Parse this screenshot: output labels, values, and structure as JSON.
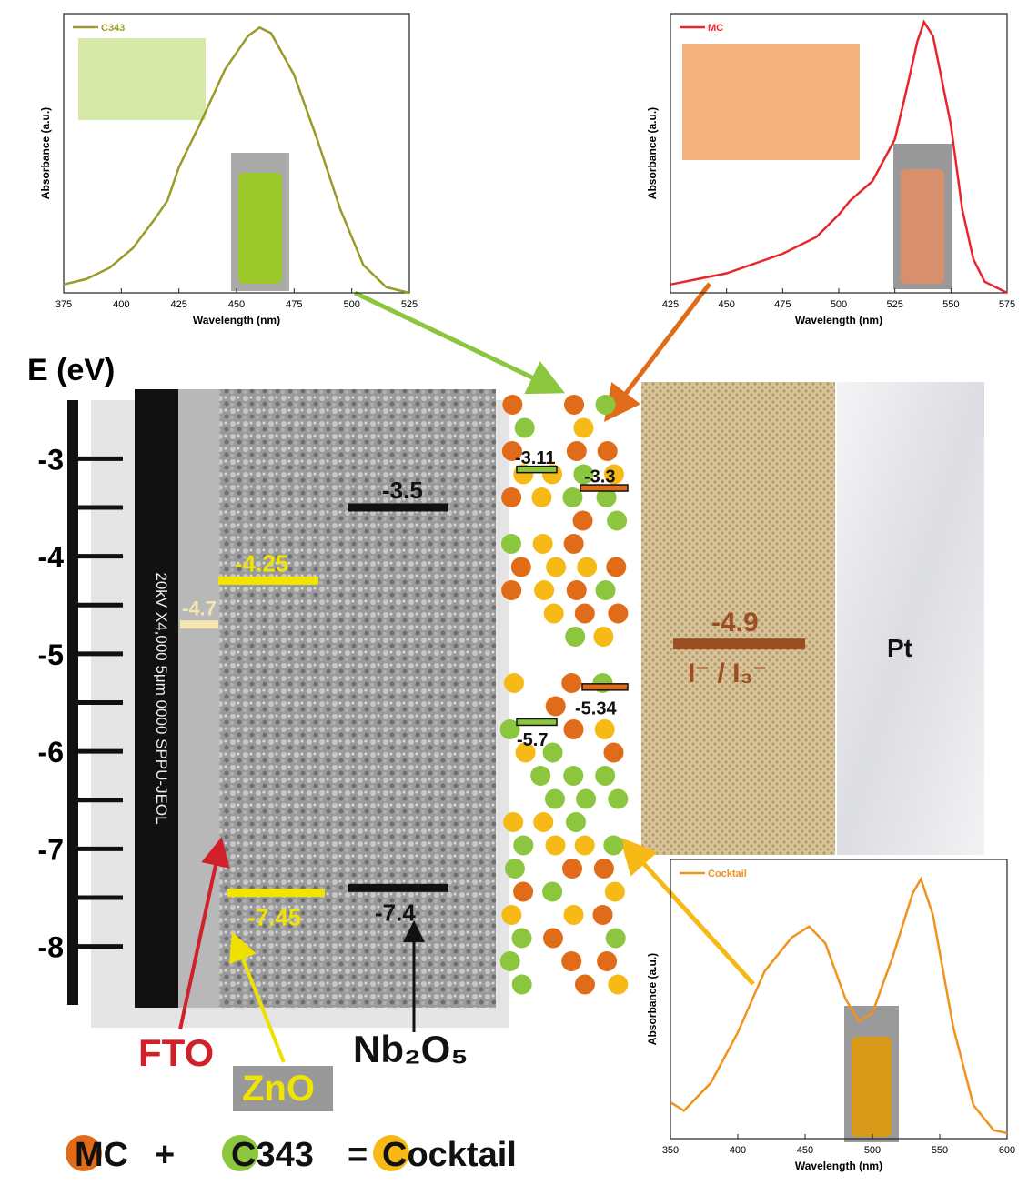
{
  "chart_data": [
    {
      "type": "line",
      "xlabel": "Wavelength (nm)",
      "ylabel": "Absorbance (a.u.)",
      "x": [
        375,
        385,
        395,
        405,
        415,
        420,
        425,
        435,
        445,
        455,
        460,
        465,
        475,
        485,
        495,
        505,
        515,
        525
      ],
      "series": [
        {
          "name": "C343",
          "color": "#9a9a2a",
          "values": [
            0.03,
            0.05,
            0.09,
            0.16,
            0.27,
            0.33,
            0.45,
            0.62,
            0.8,
            0.92,
            0.95,
            0.93,
            0.78,
            0.55,
            0.3,
            0.1,
            0.02,
            0.0
          ]
        }
      ],
      "xlim": [
        375,
        525
      ],
      "xticks": [
        375,
        400,
        425,
        450,
        475,
        500,
        525
      ],
      "ylim": [
        0,
        1
      ]
    },
    {
      "type": "line",
      "xlabel": "Wavelength (nm)",
      "ylabel": "Absorbance (a.u.)",
      "x": [
        425,
        450,
        475,
        490,
        500,
        505,
        515,
        525,
        530,
        535,
        538,
        542,
        550,
        555,
        560,
        565,
        575
      ],
      "series": [
        {
          "name": "MC",
          "color": "#e8262a",
          "values": [
            0.03,
            0.07,
            0.14,
            0.2,
            0.28,
            0.33,
            0.4,
            0.55,
            0.72,
            0.9,
            0.97,
            0.92,
            0.6,
            0.3,
            0.12,
            0.04,
            0.0
          ]
        }
      ],
      "xlim": [
        425,
        575
      ],
      "xticks": [
        425,
        450,
        475,
        500,
        525,
        550,
        575
      ],
      "ylim": [
        0,
        1
      ]
    },
    {
      "type": "line",
      "xlabel": "Wavelength (nm)",
      "ylabel": "Absorbance (a.u.)",
      "x": [
        350,
        360,
        380,
        400,
        420,
        440,
        453,
        465,
        480,
        490,
        500,
        515,
        530,
        536,
        545,
        560,
        575,
        590,
        600
      ],
      "series": [
        {
          "name": "Cocktail",
          "color": "#f0931e",
          "values": [
            0.13,
            0.1,
            0.2,
            0.38,
            0.6,
            0.72,
            0.76,
            0.7,
            0.5,
            0.42,
            0.45,
            0.65,
            0.88,
            0.93,
            0.8,
            0.4,
            0.12,
            0.03,
            0.02
          ]
        }
      ],
      "xlim": [
        350,
        600
      ],
      "xticks": [
        350,
        400,
        450,
        500,
        550,
        600
      ],
      "ylim": [
        0,
        1
      ]
    }
  ],
  "energy_diagram": {
    "ylabel": "E (eV)",
    "ylim": [
      -8.6,
      -2.4
    ],
    "yticks": [
      -3,
      -4,
      -5,
      -6,
      -7,
      -8
    ],
    "levels": [
      {
        "material": "FTO",
        "value": -4.7
      },
      {
        "material": "ZnO",
        "value": -4.25
      },
      {
        "material": "ZnO",
        "value": -7.45
      },
      {
        "material": "Nb₂O₅",
        "value": -3.5
      },
      {
        "material": "Nb₂O₅",
        "value": -7.4
      },
      {
        "material": "C343",
        "value": -3.11
      },
      {
        "material": "C343",
        "value": -5.7
      },
      {
        "material": "MC",
        "value": -3.3
      },
      {
        "material": "MC",
        "value": -5.34
      },
      {
        "material": "I⁻ / I₃⁻",
        "value": -4.9
      }
    ],
    "sem_label": "20kV   X4,000   5μm   0000   SPPU-JEOL",
    "counter_electrode": "Pt"
  },
  "legend": {
    "items": [
      "MC",
      "C343",
      "Cocktail"
    ],
    "operators": [
      "+",
      "="
    ]
  }
}
